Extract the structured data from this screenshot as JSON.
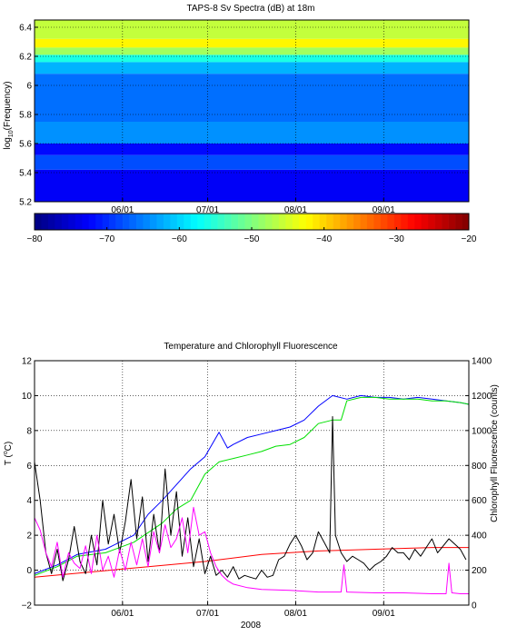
{
  "chart_data": [
    {
      "type": "heatmap",
      "title": "TAPS-8 Sv Spectra (dB) at 18m",
      "ylabel": "log10(Frequency)",
      "ylabel_parts": {
        "pre": "log",
        "sub": "10",
        "post": "(Frequency)"
      },
      "xlabel": "",
      "x_ticks": [
        "06/01",
        "07/01",
        "08/01",
        "09/01"
      ],
      "y_ticks": [
        "6.4",
        "6.2",
        "6",
        "5.8",
        "5.6",
        "5.4",
        "5.2"
      ],
      "ylim": [
        5.2,
        6.45
      ],
      "colorbar": {
        "ticks": [
          "−80",
          "−70",
          "−60",
          "−50",
          "−40",
          "−30",
          "−20"
        ],
        "range": [
          -80,
          -20
        ],
        "colormap": "jet"
      },
      "bands": [
        {
          "f_from": 6.45,
          "f_to": 6.32,
          "level_db": -46
        },
        {
          "f_from": 6.32,
          "f_to": 6.26,
          "level_db": -42
        },
        {
          "f_from": 6.26,
          "f_to": 6.21,
          "level_db": -48
        },
        {
          "f_from": 6.21,
          "f_to": 6.16,
          "level_db": -56
        },
        {
          "f_from": 6.16,
          "f_to": 6.08,
          "level_db": -62
        },
        {
          "f_from": 6.08,
          "f_to": 5.75,
          "level_db": -66
        },
        {
          "f_from": 5.75,
          "f_to": 5.6,
          "level_db": -64
        },
        {
          "f_from": 5.6,
          "f_to": 5.52,
          "level_db": -72
        },
        {
          "f_from": 5.52,
          "f_to": 5.42,
          "level_db": -68
        },
        {
          "f_from": 5.42,
          "f_to": 5.2,
          "level_db": -73
        }
      ]
    },
    {
      "type": "line",
      "title": "Temperature and Chlorophyll Fluorescence",
      "xlabel": "2008",
      "ylabel_left": "T (°C)",
      "ylabel_left_parts": {
        "pre": "T (",
        "sup": "o",
        "post": "C)"
      },
      "ylabel_right": "Chlorophyll Fluorescence (counts)",
      "x_ticks": [
        "06/01",
        "07/01",
        "08/01",
        "09/01"
      ],
      "x_tick_days": [
        31,
        61,
        92,
        123
      ],
      "xlim_days": [
        0,
        153
      ],
      "ylim_left": [
        -2,
        12
      ],
      "y_ticks_left": [
        "12",
        "10",
        "8",
        "6",
        "4",
        "2",
        "0",
        "−2"
      ],
      "ylim_right": [
        0,
        1400
      ],
      "y_ticks_right": [
        "1400",
        "1200",
        "1000",
        "800",
        "600",
        "400",
        "200",
        "0"
      ],
      "series": [
        {
          "color": "#0000ff",
          "axis": "left",
          "x": [
            0,
            8,
            15,
            25,
            35,
            40,
            45,
            50,
            55,
            60,
            65,
            68,
            70,
            75,
            80,
            85,
            90,
            95,
            100,
            105,
            110,
            115,
            120,
            125,
            130,
            135,
            140,
            145,
            150,
            153
          ],
          "y": [
            -0.2,
            0.3,
            0.9,
            1.2,
            2.0,
            3.2,
            4.0,
            4.9,
            5.8,
            6.5,
            7.9,
            7.0,
            7.2,
            7.6,
            7.8,
            8.0,
            8.2,
            8.6,
            9.4,
            10.0,
            9.8,
            10.0,
            9.9,
            9.9,
            9.8,
            9.9,
            9.8,
            9.7,
            9.6,
            9.5
          ]
        },
        {
          "color": "#00e000",
          "axis": "left",
          "x": [
            0,
            8,
            15,
            25,
            35,
            45,
            50,
            55,
            60,
            65,
            70,
            75,
            80,
            85,
            90,
            95,
            100,
            105,
            108,
            110,
            115,
            120,
            125,
            130,
            135,
            140,
            145,
            150,
            153
          ],
          "y": [
            -0.3,
            0.2,
            0.8,
            1.0,
            1.6,
            2.7,
            3.5,
            4.0,
            5.5,
            6.2,
            6.4,
            6.6,
            6.8,
            7.1,
            7.2,
            7.6,
            8.4,
            8.6,
            8.6,
            9.7,
            9.9,
            9.9,
            9.8,
            9.8,
            9.8,
            9.7,
            9.7,
            9.6,
            9.5
          ]
        },
        {
          "color": "#ff0000",
          "axis": "left",
          "x": [
            0,
            20,
            40,
            60,
            80,
            100,
            120,
            140,
            153
          ],
          "y": [
            -0.4,
            -0.1,
            0.2,
            0.5,
            0.9,
            1.1,
            1.2,
            1.3,
            1.3
          ]
        },
        {
          "color": "#000000",
          "axis": "right",
          "x": [
            0,
            2,
            4,
            6,
            8,
            10,
            12,
            14,
            16,
            18,
            20,
            22,
            24,
            26,
            28,
            30,
            32,
            34,
            36,
            38,
            40,
            42,
            44,
            46,
            48,
            50,
            52,
            54,
            56,
            58,
            60,
            62,
            64,
            66,
            68,
            70,
            72,
            74,
            76,
            78,
            80,
            82,
            84,
            86,
            88,
            90,
            92,
            94,
            96,
            98,
            100,
            102,
            104,
            105,
            106,
            108,
            110,
            112,
            114,
            116,
            118,
            120,
            122,
            124,
            126,
            128,
            130,
            132,
            134,
            136,
            138,
            140,
            142,
            144,
            146,
            148,
            150,
            152
          ],
          "y": [
            820,
            600,
            300,
            180,
            320,
            140,
            260,
            450,
            250,
            180,
            400,
            230,
            600,
            350,
            520,
            300,
            480,
            720,
            380,
            620,
            250,
            520,
            300,
            780,
            400,
            650,
            280,
            500,
            220,
            380,
            180,
            280,
            170,
            200,
            160,
            220,
            150,
            170,
            160,
            150,
            200,
            160,
            170,
            260,
            280,
            350,
            400,
            340,
            260,
            300,
            420,
            360,
            300,
            1080,
            400,
            300,
            250,
            280,
            260,
            240,
            200,
            230,
            250,
            280,
            330,
            300,
            300,
            260,
            320,
            280,
            330,
            380,
            300,
            340,
            380,
            350,
            320,
            260
          ]
        },
        {
          "color": "#ff00ff",
          "axis": "right",
          "x": [
            0,
            2,
            4,
            6,
            8,
            10,
            12,
            14,
            16,
            18,
            20,
            22,
            24,
            26,
            28,
            30,
            32,
            34,
            36,
            38,
            40,
            42,
            44,
            46,
            48,
            50,
            52,
            54,
            56,
            58,
            60,
            62,
            64,
            66,
            68,
            70,
            75,
            80,
            90,
            100,
            108,
            109,
            110,
            120,
            130,
            140,
            145,
            146,
            147,
            150,
            153
          ],
          "y": [
            500,
            430,
            300,
            220,
            360,
            160,
            300,
            240,
            210,
            340,
            180,
            400,
            200,
            280,
            160,
            320,
            200,
            360,
            230,
            380,
            220,
            420,
            300,
            460,
            330,
            380,
            500,
            300,
            560,
            400,
            420,
            300,
            220,
            170,
            140,
            120,
            100,
            90,
            85,
            75,
            75,
            230,
            75,
            70,
            70,
            65,
            65,
            240,
            70,
            65,
            65
          ]
        }
      ]
    }
  ]
}
